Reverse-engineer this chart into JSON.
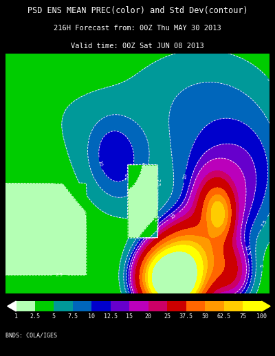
{
  "title_line1": "PSD ENS MEAN PREC(color) and Std Dev(contour)",
  "title_line2": "216H Forecast from: 00Z Thu MAY 30 2013",
  "title_line3": "Valid time: 00Z Sat JUN 08 2013",
  "colorbar_levels": [
    1,
    2.5,
    5,
    7.5,
    10,
    12.5,
    15,
    20,
    25,
    37.5,
    50,
    62.5,
    75,
    100
  ],
  "colorbar_colors": [
    "#b4ffb4",
    "#00cc00",
    "#009999",
    "#0066bb",
    "#0000cc",
    "#6600cc",
    "#bb00bb",
    "#cc0066",
    "#cc0000",
    "#ff6600",
    "#ff9900",
    "#ffcc00",
    "#ffff00"
  ],
  "background_color": "#000000",
  "text_color": "#ffffff",
  "credit_text": "BNDS: COLA/IGES",
  "fig_width": 4.0,
  "fig_height": 5.18
}
